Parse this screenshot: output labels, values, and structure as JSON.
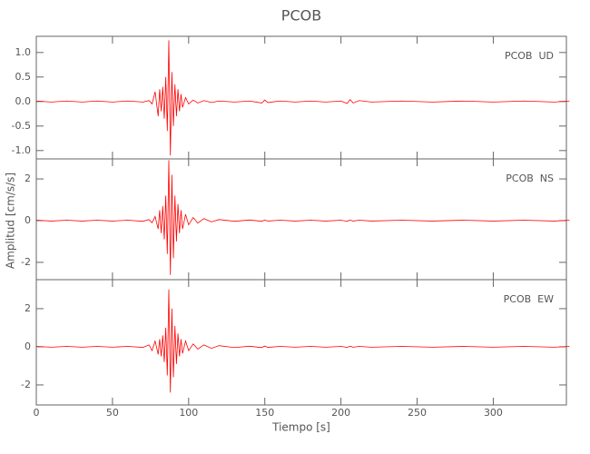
{
  "chart_data": {
    "type": "line",
    "title": "PCOB",
    "x_label": "Tiempo [s]",
    "y_label": "Amplitud [cm/s/s]",
    "xlim": [
      0,
      348
    ],
    "xticks": [
      0,
      50,
      100,
      150,
      200,
      250,
      300
    ],
    "x": [
      0,
      10,
      20,
      30,
      40,
      50,
      60,
      70,
      74,
      76,
      78,
      80,
      81,
      82,
      83,
      84,
      85,
      86,
      87,
      88,
      89,
      90,
      91,
      92,
      93,
      94,
      95,
      96,
      98,
      100,
      103,
      106,
      110,
      115,
      120,
      130,
      140,
      148,
      150,
      152,
      160,
      170,
      180,
      190,
      200,
      204,
      206,
      208,
      212,
      220,
      240,
      260,
      280,
      300,
      320,
      340,
      350
    ],
    "panels": [
      {
        "label": "PCOB  UD",
        "ylim": [
          -1.17,
          1.33
        ],
        "yticks": [
          {
            "value": -1,
            "label": "-1.0"
          },
          -0.5,
          {
            "value": 0,
            "label": "0.0"
          },
          0.5,
          {
            "value": 1,
            "label": "1.0"
          }
        ],
        "color": "#ff0000",
        "values": [
          0.01,
          -0.01,
          0.01,
          -0.01,
          0.01,
          -0.01,
          0.01,
          -0.01,
          0.02,
          -0.05,
          0.2,
          -0.3,
          0.25,
          -0.2,
          0.3,
          -0.35,
          0.5,
          -0.6,
          1.25,
          -1.1,
          0.6,
          -0.5,
          0.35,
          -0.3,
          0.25,
          -0.2,
          0.15,
          -0.12,
          0.08,
          -0.05,
          0.03,
          -0.03,
          0.02,
          -0.02,
          0.01,
          -0.01,
          0.01,
          -0.03,
          0.03,
          -0.02,
          0.01,
          -0.01,
          0.01,
          -0.01,
          0.01,
          -0.04,
          0.04,
          -0.03,
          0.02,
          -0.01,
          0.01,
          -0.01,
          0.01,
          -0.01,
          0.01,
          -0.01,
          0.01
        ]
      },
      {
        "label": "PCOB  NS",
        "ylim": [
          -2.83,
          2.96
        ],
        "yticks": [
          -2,
          0,
          2
        ],
        "color": "#ff0000",
        "values": [
          0.02,
          -0.02,
          0.02,
          -0.02,
          0.02,
          -0.02,
          0.02,
          -0.03,
          0.05,
          -0.1,
          0.2,
          -0.4,
          0.5,
          -0.6,
          0.7,
          -0.9,
          1.2,
          -1.6,
          2.9,
          -2.6,
          2.2,
          -1.8,
          1.2,
          -1.0,
          0.8,
          -0.6,
          0.5,
          -0.4,
          0.3,
          -0.2,
          0.15,
          -0.12,
          0.1,
          -0.06,
          0.05,
          -0.03,
          0.03,
          -0.03,
          0.03,
          -0.02,
          0.02,
          -0.02,
          0.02,
          -0.02,
          0.02,
          -0.03,
          0.03,
          -0.02,
          0.02,
          -0.02,
          0.02,
          -0.02,
          0.02,
          -0.02,
          0.02,
          -0.02,
          0.02
        ]
      },
      {
        "label": "PCOB  EW",
        "ylim": [
          -3.05,
          3.52
        ],
        "yticks": [
          -2,
          0,
          2
        ],
        "color": "#ff0000",
        "values": [
          0.02,
          -0.02,
          0.02,
          -0.02,
          0.02,
          -0.02,
          0.02,
          -0.03,
          0.1,
          -0.2,
          0.3,
          -0.4,
          0.4,
          -0.5,
          0.6,
          -0.8,
          1.0,
          -1.5,
          3.0,
          -2.4,
          2.0,
          -1.6,
          1.1,
          -0.9,
          0.7,
          -0.5,
          0.4,
          -0.35,
          0.3,
          -0.2,
          0.15,
          -0.12,
          0.1,
          -0.08,
          0.06,
          -0.04,
          0.03,
          -0.04,
          0.04,
          -0.03,
          0.02,
          -0.02,
          0.02,
          -0.02,
          0.02,
          -0.03,
          0.03,
          -0.02,
          0.02,
          -0.02,
          0.02,
          -0.02,
          0.02,
          -0.02,
          0.02,
          -0.02,
          0.02
        ]
      }
    ]
  }
}
